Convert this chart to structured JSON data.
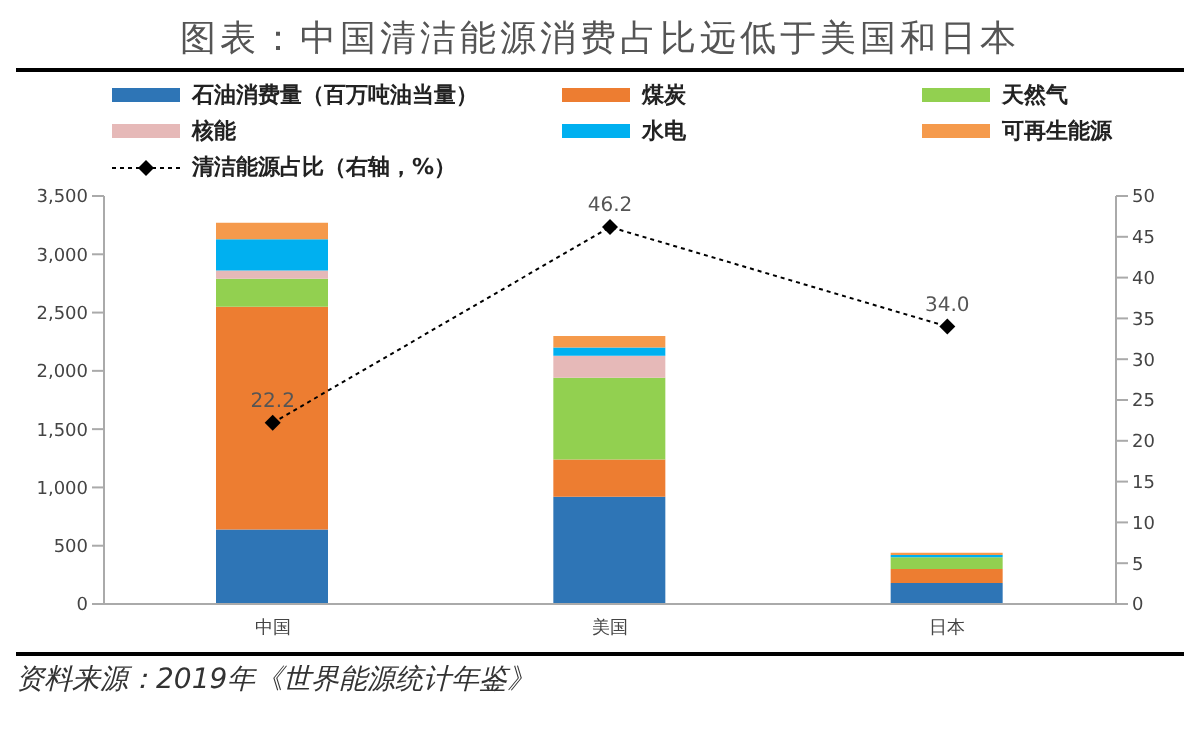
{
  "chart_data": {
    "type": "bar",
    "stacked": true,
    "title": "图表：中国清洁能源消费占比远低于美国和日本",
    "categories": [
      "中国",
      "美国",
      "日本"
    ],
    "series": [
      {
        "name": "石油消费量（百万吨油当量）",
        "color": "#2e75b6",
        "values": [
          640,
          920,
          180
        ]
      },
      {
        "name": "煤炭",
        "color": "#ed7d31",
        "values": [
          1910,
          320,
          120
        ]
      },
      {
        "name": "天然气",
        "color": "#92d050",
        "values": [
          240,
          700,
          100
        ]
      },
      {
        "name": "核能",
        "color": "#e6b9b8",
        "values": [
          70,
          190,
          null
        ]
      },
      {
        "name": "水电",
        "color": "#00b0f0",
        "values": [
          270,
          70,
          20
        ]
      },
      {
        "name": "可再生能源",
        "color": "#f59a4c",
        "values": [
          140,
          100,
          20
        ]
      },
      {
        "name": "清洁能源占比（右轴，%）",
        "type": "line",
        "axis": "y2",
        "color": "#000000",
        "values": [
          22.2,
          46.2,
          34.0
        ],
        "value_labels": [
          "22.2",
          "46.2",
          "34.0"
        ],
        "marker": "diamond",
        "line_style": "dotted"
      }
    ],
    "ylim": [
      0,
      3500
    ],
    "yticks": [
      0,
      500,
      {
        "value": 1000,
        "label": "1,000"
      },
      {
        "value": 1500,
        "label": "1,500"
      },
      {
        "value": 2000,
        "label": "2,000"
      },
      {
        "value": 2500,
        "label": "2,500"
      },
      {
        "value": 3000,
        "label": "3,000"
      },
      {
        "value": 3500,
        "label": "3,500"
      }
    ],
    "y2lim": [
      0,
      50
    ],
    "y2ticks": [
      0,
      5,
      10,
      15,
      20,
      25,
      30,
      35,
      40,
      45,
      50
    ],
    "legend": "top",
    "grid": false,
    "annotations": [
      "资料来源：2019年《世界能源统计年鉴》"
    ]
  }
}
